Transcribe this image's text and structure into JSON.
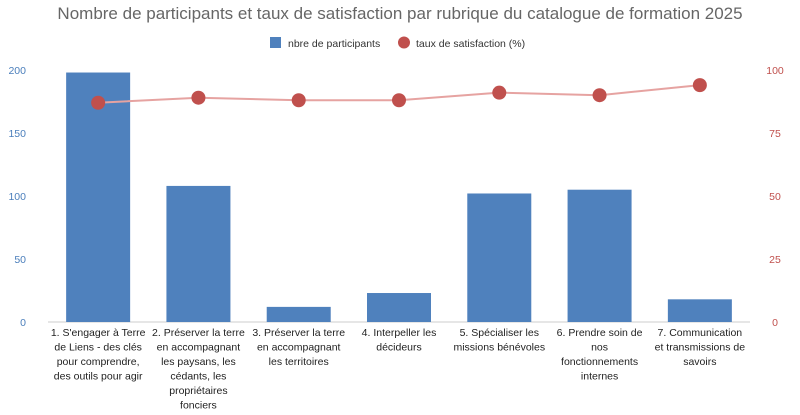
{
  "chart_data": {
    "type": "bar",
    "title": "Nombre de participants et taux de satisfaction par rubrique du catalogue de formation 2025",
    "categories": [
      [
        "1. S'engager à Terre",
        "de Liens - des clés",
        "pour comprendre,",
        "des outils pour agir"
      ],
      [
        "2. Préserver la terre",
        "en accompagnant",
        "les paysans, les",
        "cédants, les",
        "propriétaires",
        "fonciers"
      ],
      [
        "3. Préserver la terre",
        "en accompagnant",
        "les territoires"
      ],
      [
        "4. Interpeller les",
        "décideurs"
      ],
      [
        "5. Spécialiser les",
        "missions bénévoles"
      ],
      [
        "6.  Prendre soin de",
        "nos",
        "fonctionnements",
        "internes"
      ],
      [
        "7. Communication",
        "et transmissions de",
        "savoirs"
      ]
    ],
    "series": [
      {
        "name": "nbre de participants",
        "type": "bar",
        "axis": "left",
        "color": "#4f81bd",
        "values": [
          198,
          108,
          12,
          23,
          102,
          105,
          18
        ]
      },
      {
        "name": "taux de satisfaction (%)",
        "type": "line",
        "axis": "right",
        "color": "#c0504d",
        "line_color": "#e6a3a1",
        "values": [
          87,
          89,
          88,
          88,
          91,
          90,
          94
        ]
      }
    ],
    "y_left": {
      "ylim": [
        0,
        200
      ],
      "ticks": [
        "0",
        "50",
        "100",
        "150",
        "200"
      ],
      "color": "#4a7ebb"
    },
    "y_right": {
      "ylim": [
        0,
        100
      ],
      "ticks": [
        "0",
        "25",
        "50",
        "75",
        "100"
      ],
      "color": "#c0504d"
    },
    "grid": false,
    "legend_position": "top-center"
  }
}
